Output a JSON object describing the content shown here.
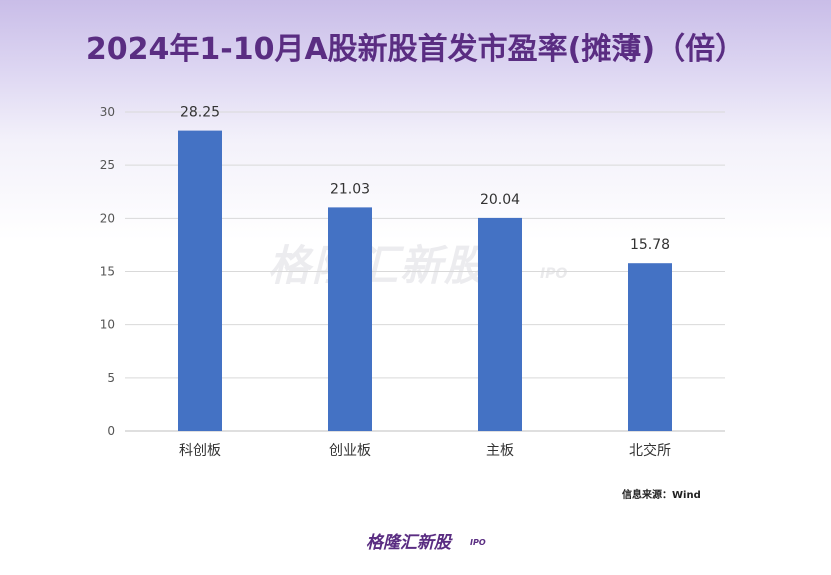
{
  "title": "2024年1-10月A股新股首发市盈率(摊薄)（倍）",
  "source": "信息来源：Wind",
  "watermark": "格隆汇新股",
  "watermark_sub": "IPO",
  "logo": "格隆汇新股",
  "logo_sub": "IPO",
  "colors": {
    "bar": "#4472c4",
    "title": "#5a2d82",
    "grid": "#d9d9d9"
  },
  "chart_data": {
    "type": "bar",
    "title": "2024年1-10月A股新股首发市盈率(摊薄)（倍）",
    "categories": [
      "科创板",
      "创业板",
      "主板",
      "北交所"
    ],
    "values": [
      28.25,
      21.03,
      20.04,
      15.78
    ],
    "data_labels": [
      "28.25",
      "21.03",
      "20.04",
      "15.78"
    ],
    "yticks": [
      0,
      5,
      10,
      15,
      20,
      25,
      30
    ],
    "ylim": [
      0,
      30
    ],
    "grid": true,
    "xlabel": "",
    "ylabel": ""
  }
}
